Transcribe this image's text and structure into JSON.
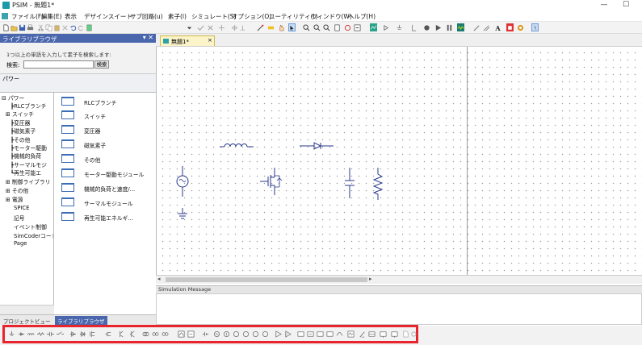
{
  "window": {
    "title": "PSIM - 無題1*",
    "minimize": "—",
    "maximize": "☐"
  },
  "menu": [
    {
      "label": "ファイル(F)"
    },
    {
      "label": "編集(E)"
    },
    {
      "label": "表示"
    },
    {
      "label": "デザインスイート"
    },
    {
      "label": "サブ回路(u)"
    },
    {
      "label": "素子(l)"
    },
    {
      "label": "シミュレート(S)"
    },
    {
      "label": "オプション(O)"
    },
    {
      "label": "ユーティリティ(t)"
    },
    {
      "label": "ウィンドウ(W)"
    },
    {
      "label": "ヘルプ(H)"
    }
  ],
  "library": {
    "header": "ライブラリブラウザ",
    "header_buttons": "▾ ✕",
    "search_hint": "1つ以上の単語を入力して素子を検索します:",
    "search_label": "検索:",
    "search_value": "",
    "search_button": "検索",
    "path": "パワー",
    "tree": [
      {
        "label": "パワー",
        "prefix": "⊟"
      },
      {
        "label": "RLCブランチ",
        "prefix": "┣"
      },
      {
        "label": "スイッチ",
        "prefix": "⊞"
      },
      {
        "label": "変圧器",
        "prefix": "┣"
      },
      {
        "label": "磁気素子",
        "prefix": "┣"
      },
      {
        "label": "その他",
        "prefix": "┣"
      },
      {
        "label": "モーター駆動",
        "prefix": "┣"
      },
      {
        "label": "機械的負荷",
        "prefix": "┣"
      },
      {
        "label": "サーマルモジ",
        "prefix": "┣"
      },
      {
        "label": "再生可能エ",
        "prefix": "┗"
      },
      {
        "label": "制御ライブラリ",
        "prefix": "⊞"
      },
      {
        "label": "その他",
        "prefix": "⊞"
      },
      {
        "label": "電源",
        "prefix": "⊞"
      },
      {
        "label": "SPICE",
        "prefix": ""
      },
      {
        "label": "記号",
        "prefix": ""
      },
      {
        "label": "イベント制御",
        "prefix": ""
      },
      {
        "label": "SimCoderコード",
        "prefix": ""
      },
      {
        "label": "Page",
        "prefix": ""
      }
    ],
    "folders": [
      {
        "label": "RLCブランチ"
      },
      {
        "label": "スイッチ"
      },
      {
        "label": "変圧器"
      },
      {
        "label": "磁気素子"
      },
      {
        "label": "その他"
      },
      {
        "label": "モーター駆動モジュール"
      },
      {
        "label": "機械的負荷と速度/..."
      },
      {
        "label": "サーマルモジュール"
      },
      {
        "label": "再生可能エネルギ..."
      }
    ],
    "tabs": [
      {
        "label": "プロジェクトビュー",
        "active": false
      },
      {
        "label": "ライブラリブラウザ",
        "active": true
      }
    ]
  },
  "document": {
    "tab_title": "無題1*",
    "tab_close": "×"
  },
  "simulation_message": {
    "header": "Simulation Message"
  },
  "colors": {
    "panel_header": "#4a66ad",
    "highlight_box": "#e8242c",
    "component_blue": "#2a3a8c",
    "tab_active": "#fbf4c8"
  }
}
